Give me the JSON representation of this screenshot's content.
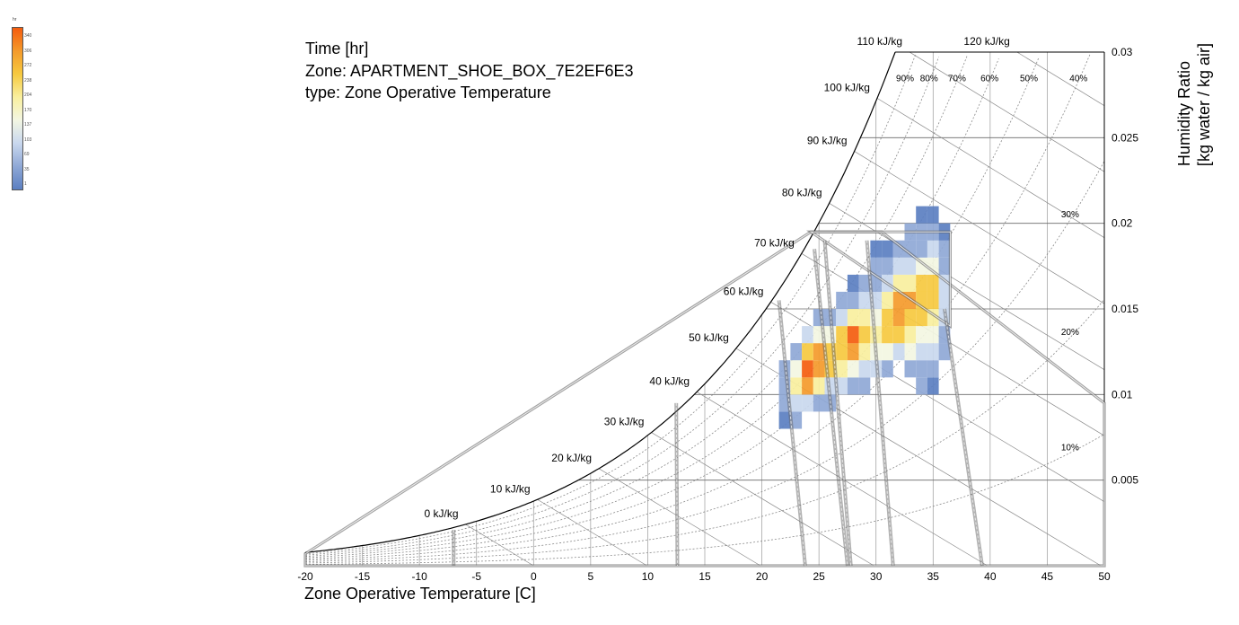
{
  "chart_data": {
    "type": "heatmap",
    "title_lines": [
      "Time [hr]",
      "Zone: APARTMENT_SHOE_BOX_7E2EF6E3",
      "type: Zone Operative Temperature"
    ],
    "xlabel": "Zone Operative Temperature [C]",
    "ylabel_lines": [
      "Humidity Ratio",
      "[kg water / kg air]"
    ],
    "xlim": [
      -20,
      50
    ],
    "ylim": [
      0,
      0.03
    ],
    "x_ticks": [
      -20,
      -15,
      -10,
      -5,
      0,
      5,
      10,
      15,
      20,
      25,
      30,
      35,
      40,
      45,
      50
    ],
    "y_ticks": [
      0.005,
      0.01,
      0.015,
      0.02,
      0.025,
      0.03
    ],
    "y_tick_labels": [
      "0.005",
      "0.01",
      "0.015",
      "0.02",
      "0.025",
      "0.03"
    ],
    "enthalpy_labels": [
      "0 kJ/kg",
      "10 kJ/kg",
      "20 kJ/kg",
      "30 kJ/kg",
      "40 kJ/kg",
      "50 kJ/kg",
      "60 kJ/kg",
      "70 kJ/kg",
      "80 kJ/kg",
      "90 kJ/kg",
      "100 kJ/kg",
      "110 kJ/kg",
      "120 kJ/kg"
    ],
    "enthalpy_values": [
      0,
      10,
      20,
      30,
      40,
      50,
      60,
      70,
      80,
      90,
      100,
      110,
      120
    ],
    "rh_labels_top": [
      "90%",
      "80%",
      "70%",
      "60%",
      "50%",
      "40%"
    ],
    "rh_values_top": [
      90,
      80,
      70,
      60,
      50,
      40
    ],
    "rh_labels_side": [
      "30%",
      "20%",
      "10%"
    ],
    "rh_values_side": [
      30,
      20,
      10
    ],
    "legend": {
      "title": "hr",
      "ticks": [
        "340",
        "306",
        "272",
        "238",
        "204",
        "170",
        "137",
        "103",
        "69",
        "35",
        "1"
      ],
      "colors": [
        "#f45c0e",
        "#f49a2b",
        "#f6c93f",
        "#f9ef9e",
        "#f3f6e2",
        "#c9d8ee",
        "#8fa8d6",
        "#5b7fc1"
      ]
    },
    "comfort_polygons": [
      {
        "name": "comfort-zone",
        "points": [
          [
            24.3,
            0.0195
          ],
          [
            30.5,
            0.0195
          ],
          [
            50,
            0.0095
          ],
          [
            50,
            0
          ],
          [
            -20,
            0
          ],
          [
            -20,
            0.0007
          ]
        ]
      },
      {
        "name": "upper-right-zone",
        "points": [
          [
            24.3,
            0.0195
          ],
          [
            36.5,
            0.0195
          ],
          [
            36.5,
            0.014
          ]
        ]
      }
    ],
    "boundary_lines": [
      {
        "name": "strip-1",
        "points": [
          [
            21.5,
            0.0155
          ],
          [
            23.8,
            0
          ]
        ]
      },
      {
        "name": "strip-2",
        "points": [
          [
            24.6,
            0.0185
          ],
          [
            27.5,
            0
          ]
        ]
      },
      {
        "name": "strip-3",
        "points": [
          [
            25.5,
            0.019
          ],
          [
            27.8,
            0
          ]
        ]
      },
      {
        "name": "strip-4",
        "points": [
          [
            29.2,
            0.019
          ],
          [
            31.5,
            0
          ]
        ]
      },
      {
        "name": "strip-5",
        "points": [
          [
            36.0,
            0.015
          ],
          [
            39.3,
            0
          ]
        ]
      },
      {
        "name": "strip-6",
        "points": [
          [
            12.5,
            0.0095
          ],
          [
            12.6,
            0
          ]
        ]
      },
      {
        "name": "strip-7",
        "points": [
          [
            -7.0,
            0.0021
          ],
          [
            -7.0,
            0
          ]
        ]
      }
    ],
    "series": [
      {
        "name": "hours",
        "cells": [
          [
            22,
            0.0085,
            20
          ],
          [
            22,
            0.0095,
            40
          ],
          [
            22,
            0.0105,
            60
          ],
          [
            22,
            0.0115,
            30
          ],
          [
            23,
            0.0085,
            40
          ],
          [
            23,
            0.0095,
            90
          ],
          [
            23,
            0.0105,
            200
          ],
          [
            23,
            0.0115,
            150
          ],
          [
            23,
            0.0125,
            60
          ],
          [
            24,
            0.0095,
            120
          ],
          [
            24,
            0.0105,
            300
          ],
          [
            24,
            0.0115,
            340
          ],
          [
            24,
            0.0125,
            240
          ],
          [
            24,
            0.0135,
            80
          ],
          [
            25,
            0.0095,
            60
          ],
          [
            25,
            0.0105,
            180
          ],
          [
            25,
            0.0115,
            280
          ],
          [
            25,
            0.0125,
            300
          ],
          [
            25,
            0.0135,
            160
          ],
          [
            25,
            0.0145,
            50
          ],
          [
            26,
            0.0095,
            30
          ],
          [
            26,
            0.0105,
            120
          ],
          [
            26,
            0.0115,
            220
          ],
          [
            26,
            0.0125,
            250
          ],
          [
            26,
            0.0135,
            150
          ],
          [
            26,
            0.0145,
            60
          ],
          [
            27,
            0.0105,
            90
          ],
          [
            27,
            0.0115,
            190
          ],
          [
            27,
            0.0125,
            260
          ],
          [
            27,
            0.0135,
            230
          ],
          [
            27,
            0.0145,
            110
          ],
          [
            27,
            0.0155,
            40
          ],
          [
            28,
            0.0105,
            70
          ],
          [
            28,
            0.0115,
            160
          ],
          [
            28,
            0.0125,
            290
          ],
          [
            28,
            0.0135,
            330
          ],
          [
            28,
            0.0145,
            200
          ],
          [
            28,
            0.0155,
            70
          ],
          [
            28,
            0.0165,
            20
          ],
          [
            29,
            0.0105,
            40
          ],
          [
            29,
            0.0115,
            120
          ],
          [
            29,
            0.0125,
            200
          ],
          [
            29,
            0.0135,
            260
          ],
          [
            29,
            0.0145,
            190
          ],
          [
            29,
            0.0155,
            90
          ],
          [
            29,
            0.0165,
            40
          ],
          [
            30,
            0.0115,
            90
          ],
          [
            30,
            0.0125,
            150
          ],
          [
            30,
            0.0135,
            180
          ],
          [
            30,
            0.0145,
            160
          ],
          [
            30,
            0.0155,
            100
          ],
          [
            30,
            0.0165,
            60
          ],
          [
            30,
            0.0175,
            30
          ],
          [
            30,
            0.0185,
            15
          ],
          [
            31,
            0.0115,
            60
          ],
          [
            31,
            0.0125,
            140
          ],
          [
            31,
            0.0135,
            220
          ],
          [
            31,
            0.0145,
            250
          ],
          [
            31,
            0.0155,
            190
          ],
          [
            31,
            0.0165,
            120
          ],
          [
            31,
            0.0175,
            60
          ],
          [
            31,
            0.0185,
            20
          ],
          [
            32,
            0.0125,
            120
          ],
          [
            32,
            0.0135,
            220
          ],
          [
            32,
            0.0145,
            280
          ],
          [
            32,
            0.0155,
            300
          ],
          [
            32,
            0.0165,
            200
          ],
          [
            32,
            0.0175,
            110
          ],
          [
            32,
            0.0185,
            40
          ],
          [
            33,
            0.0115,
            60
          ],
          [
            33,
            0.0125,
            130
          ],
          [
            33,
            0.0135,
            200
          ],
          [
            33,
            0.0145,
            260
          ],
          [
            33,
            0.0155,
            270
          ],
          [
            33,
            0.0165,
            210
          ],
          [
            33,
            0.0175,
            120
          ],
          [
            33,
            0.0185,
            60
          ],
          [
            33,
            0.0195,
            30
          ],
          [
            34,
            0.0105,
            30
          ],
          [
            34,
            0.0115,
            60
          ],
          [
            34,
            0.0125,
            110
          ],
          [
            34,
            0.0135,
            170
          ],
          [
            34,
            0.0145,
            230
          ],
          [
            34,
            0.0155,
            250
          ],
          [
            34,
            0.0165,
            220
          ],
          [
            34,
            0.0175,
            140
          ],
          [
            34,
            0.0185,
            70
          ],
          [
            34,
            0.0195,
            40
          ],
          [
            34,
            0.0205,
            20
          ],
          [
            35,
            0.0105,
            20
          ],
          [
            35,
            0.0115,
            40
          ],
          [
            35,
            0.0125,
            80
          ],
          [
            35,
            0.0135,
            130
          ],
          [
            35,
            0.0145,
            190
          ],
          [
            35,
            0.0155,
            240
          ],
          [
            35,
            0.0165,
            230
          ],
          [
            35,
            0.0175,
            160
          ],
          [
            35,
            0.0185,
            90
          ],
          [
            35,
            0.0195,
            50
          ],
          [
            35,
            0.0205,
            25
          ],
          [
            36,
            0.0125,
            40
          ],
          [
            36,
            0.0135,
            70
          ],
          [
            36,
            0.0145,
            100
          ],
          [
            36,
            0.0155,
            120
          ],
          [
            36,
            0.0165,
            100
          ],
          [
            36,
            0.0175,
            70
          ],
          [
            36,
            0.0185,
            40
          ],
          [
            36,
            0.0195,
            20
          ]
        ]
      }
    ]
  }
}
